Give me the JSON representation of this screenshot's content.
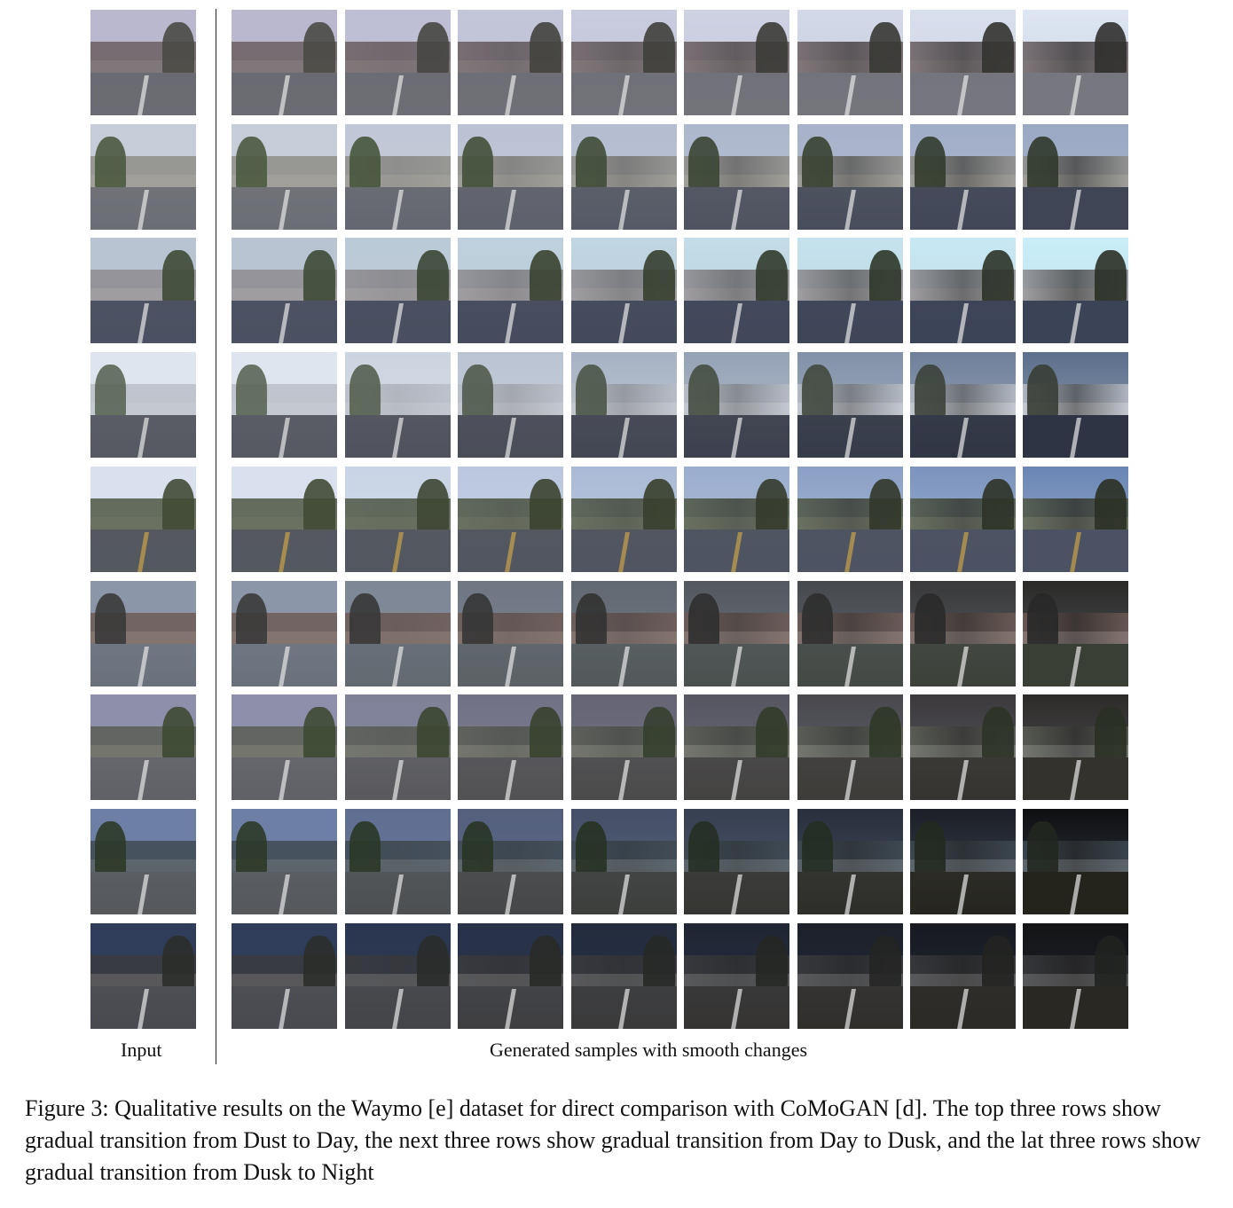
{
  "labels": {
    "input": "Input",
    "generated": "Generated samples with smooth changes"
  },
  "caption": "Figure 3: Qualitative results on the Waymo [e] dataset for direct comparison with CoMoGAN [d]. The top three rows show gradual transition from Dust to Day, the next three rows show gradual transition from Day to Dusk, and the lat three rows show gradual transition from Dusk to Night",
  "grid": {
    "rows": 9,
    "generated_columns": 8,
    "row_palettes": [
      {
        "sky": [
          "#b9b8cf",
          "#dde6f2"
        ],
        "build": "#6a5f62",
        "road": [
          "#6a6b72",
          "#77787f"
        ],
        "tree": "#4a4a45"
      },
      {
        "sky": [
          "#c7ccd9",
          "#9aa8c4"
        ],
        "build": "#8f8e88",
        "road": [
          "#707278",
          "#3f4555"
        ],
        "tree": "#4a5a40"
      },
      {
        "sky": [
          "#b9c4d2",
          "#c9eef8"
        ],
        "build": "#8e8c90",
        "road": [
          "#4d5263",
          "#3b4356"
        ],
        "tree": "#3e4a36"
      },
      {
        "sky": [
          "#dfe5ee",
          "#5d6f8c"
        ],
        "build": "#b9bec7",
        "road": [
          "#5a5d65",
          "#2f3444"
        ],
        "tree": "#5a6655"
      },
      {
        "sky": [
          "#d9e1ee",
          "#6b86b5"
        ],
        "build": "#505845",
        "road": [
          "#55595f",
          "#4b5263"
        ],
        "tree": "#414a35"
      },
      {
        "sky": [
          "#8b96a8",
          "#2b2a28"
        ],
        "build": "#6e5b56",
        "road": [
          "#6f7783",
          "#3a3f36"
        ],
        "tree": "#3a3a3a"
      },
      {
        "sky": [
          "#8d8fab",
          "#2d2b28"
        ],
        "build": "#5b5e55",
        "road": [
          "#65666d",
          "#34322d"
        ],
        "tree": "#3e4a33"
      },
      {
        "sky": [
          "#6e7fa6",
          "#0e0f10"
        ],
        "build": "#3f4a52",
        "road": [
          "#5a5e63",
          "#24231c"
        ],
        "tree": "#2c3a28"
      },
      {
        "sky": [
          "#2f3d5a",
          "#141416"
        ],
        "build": "#3a3b3e",
        "road": [
          "#4c4e55",
          "#2a2823"
        ],
        "tree": "#2b2e2a"
      }
    ]
  }
}
